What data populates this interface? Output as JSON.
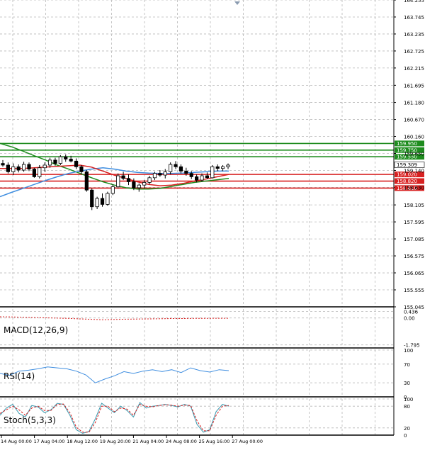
{
  "chart_data": [
    {
      "type": "candlestick",
      "ylim": [
        155.045,
        164.255
      ],
      "y_ticks": [
        "164.255",
        "163.745",
        "163.235",
        "162.725",
        "162.215",
        "161.695",
        "161.180",
        "160.670",
        "160.160",
        "159.650",
        "159.140",
        "158.630",
        "158.105",
        "157.595",
        "157.085",
        "156.575",
        "156.065",
        "155.555",
        "155.045"
      ],
      "x_ticks": [
        "14 Aug 00:00",
        "17 Aug 04:00",
        "18 Aug 12:00",
        "19 Aug 20:00",
        "21 Aug 04:00",
        "24 Aug 08:00",
        "25 Aug 16:00",
        "27 Aug 00:00"
      ],
      "colors": {
        "up": "#1e8c1e",
        "down": "#d01010",
        "wick": "#000000",
        "grid": "#b8b8b8",
        "ma_blue": "#3f8ee0",
        "ma_red": "#d82020",
        "ma_green": "#1e8c1e"
      },
      "candles": [
        [
          159.35,
          159.45,
          159.25,
          159.3
        ],
        [
          159.3,
          159.38,
          159.05,
          159.1
        ],
        [
          159.1,
          159.35,
          159.0,
          159.25
        ],
        [
          159.25,
          159.32,
          159.08,
          159.15
        ],
        [
          159.15,
          159.4,
          159.1,
          159.32
        ],
        [
          159.32,
          159.38,
          159.12,
          159.18
        ],
        [
          159.18,
          159.22,
          158.92,
          158.95
        ],
        [
          158.95,
          159.3,
          158.9,
          159.22
        ],
        [
          159.22,
          159.38,
          159.1,
          159.3
        ],
        [
          159.3,
          159.52,
          159.22,
          159.45
        ],
        [
          159.45,
          159.52,
          159.28,
          159.35
        ],
        [
          159.35,
          159.6,
          159.3,
          159.55
        ],
        [
          159.55,
          159.62,
          159.4,
          159.48
        ],
        [
          159.48,
          159.58,
          159.38,
          159.42
        ],
        [
          159.42,
          159.5,
          159.18,
          159.25
        ],
        [
          159.25,
          159.3,
          159.02,
          159.1
        ],
        [
          159.1,
          159.15,
          158.5,
          158.55
        ],
        [
          158.55,
          158.6,
          157.95,
          158.05
        ],
        [
          158.05,
          158.35,
          157.98,
          158.3
        ],
        [
          158.3,
          158.45,
          158.05,
          158.12
        ],
        [
          158.12,
          158.5,
          158.08,
          158.45
        ],
        [
          158.45,
          158.72,
          158.4,
          158.65
        ],
        [
          158.65,
          159.05,
          158.6,
          158.98
        ],
        [
          158.98,
          159.1,
          158.85,
          158.9
        ],
        [
          158.9,
          159.02,
          158.7,
          158.8
        ],
        [
          158.8,
          158.9,
          158.55,
          158.62
        ],
        [
          158.62,
          158.75,
          158.5,
          158.7
        ],
        [
          158.7,
          158.85,
          158.6,
          158.78
        ],
        [
          158.78,
          158.98,
          158.72,
          158.92
        ],
        [
          158.92,
          159.1,
          158.85,
          159.05
        ],
        [
          159.05,
          159.15,
          158.95,
          159.0
        ],
        [
          159.0,
          159.18,
          158.9,
          159.1
        ],
        [
          159.1,
          159.38,
          159.02,
          159.32
        ],
        [
          159.32,
          159.42,
          159.18,
          159.25
        ],
        [
          159.25,
          159.32,
          159.05,
          159.12
        ],
        [
          159.12,
          159.22,
          158.98,
          159.05
        ],
        [
          159.05,
          159.12,
          158.88,
          158.95
        ],
        [
          158.95,
          159.02,
          158.78,
          158.85
        ],
        [
          158.85,
          159.05,
          158.8,
          158.98
        ],
        [
          158.98,
          159.08,
          158.88,
          158.92
        ],
        [
          158.92,
          159.3,
          158.9,
          159.25
        ],
        [
          159.25,
          159.32,
          159.12,
          159.2
        ],
        [
          159.2,
          159.3,
          159.12,
          159.25
        ],
        [
          159.25,
          159.35,
          159.18,
          159.3
        ]
      ],
      "ma_blue": [
        158.35,
        158.48,
        158.6,
        158.72,
        158.84,
        158.95,
        159.05,
        159.12,
        159.18,
        159.22,
        159.18,
        159.12,
        159.08,
        159.06,
        159.05,
        159.05,
        159.06,
        159.08,
        159.1,
        159.12,
        159.12
      ],
      "ma_red": [
        159.2,
        159.2,
        159.2,
        159.22,
        159.24,
        159.26,
        159.28,
        159.3,
        159.24,
        159.12,
        159.0,
        158.9,
        158.8,
        158.72,
        158.68,
        158.7,
        158.75,
        158.82,
        158.88,
        158.95,
        159.02
      ],
      "ma_green": [
        159.95,
        159.85,
        159.72,
        159.58,
        159.45,
        159.3,
        159.18,
        159.05,
        158.92,
        158.8,
        158.7,
        158.62,
        158.58,
        158.58,
        158.6,
        158.66,
        158.72,
        158.78,
        158.82,
        158.86,
        158.9
      ],
      "levels": [
        {
          "value": 159.95,
          "label": "159.950",
          "color": "#1e8c1e"
        },
        {
          "value": 159.75,
          "label": "159.750",
          "color": "#1e8c1e"
        },
        {
          "value": 159.55,
          "label": "159.550",
          "color": "#1e8c1e"
        },
        {
          "value": 159.02,
          "label": "159.020",
          "color": "#d82020"
        },
        {
          "value": 158.82,
          "label": "158.820",
          "color": "#d82020"
        },
        {
          "value": 158.61,
          "label": "158.610",
          "color": "#d82020"
        }
      ],
      "current_price": {
        "value": 159.309,
        "label": "159.309"
      }
    },
    {
      "type": "line",
      "title": "MACD(12,26,9)",
      "ylim": [
        -2.0,
        0.6
      ],
      "y_ticks": [
        "0.436",
        "0.00",
        "-1.795"
      ],
      "series": [
        {
          "values": [
            0.08,
            0.07,
            0.05,
            0.03,
            0.01,
            -0.01,
            -0.03,
            -0.06,
            -0.09,
            -0.12,
            -0.1,
            -0.08,
            -0.07,
            -0.06,
            -0.05,
            -0.04,
            -0.04,
            -0.03,
            -0.03,
            -0.02,
            -0.02
          ]
        }
      ]
    },
    {
      "type": "line",
      "title": "RSI(14)",
      "ylim": [
        0,
        100
      ],
      "y_ticks": [
        "100",
        "70",
        "30",
        "0"
      ],
      "series": [
        {
          "values": [
            50,
            46,
            55,
            57,
            60,
            64,
            62,
            60,
            55,
            47,
            30,
            38,
            45,
            54,
            50,
            55,
            58,
            54,
            58,
            52,
            62,
            56,
            53,
            58,
            56
          ]
        }
      ]
    },
    {
      "type": "line",
      "title": "Stoch(5,3,3)",
      "ylim": [
        0,
        100
      ],
      "y_ticks": [
        "100",
        "80",
        "20",
        "0"
      ],
      "series": [
        {
          "values": [
            55,
            75,
            85,
            60,
            50,
            82,
            78,
            62,
            70,
            88,
            85,
            55,
            15,
            5,
            10,
            45,
            88,
            75,
            62,
            80,
            68,
            50,
            90,
            75,
            80,
            82,
            85,
            82,
            78,
            85,
            80,
            30,
            8,
            15,
            65,
            85,
            80
          ]
        },
        {
          "values": [
            60,
            70,
            80,
            70,
            55,
            75,
            80,
            68,
            68,
            85,
            86,
            62,
            22,
            8,
            8,
            35,
            80,
            80,
            65,
            75,
            72,
            55,
            85,
            80,
            78,
            82,
            84,
            83,
            80,
            83,
            82,
            40,
            12,
            12,
            55,
            80,
            82
          ]
        }
      ]
    }
  ]
}
